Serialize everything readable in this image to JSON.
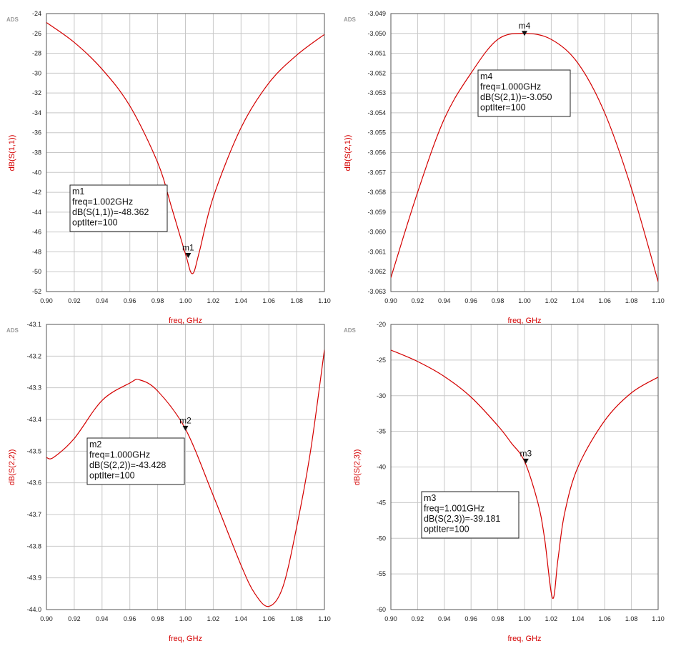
{
  "chart_data": [
    {
      "type": "line",
      "watermark": "ADS",
      "xlabel": "freq, GHz",
      "ylabel": "dB(S(1,1))",
      "xlim": [
        0.9,
        1.1
      ],
      "ylim": [
        -52,
        -24
      ],
      "xticks": [
        "0.90",
        "0.92",
        "0.94",
        "0.96",
        "0.98",
        "1.00",
        "1.02",
        "1.04",
        "1.06",
        "1.08",
        "1.10"
      ],
      "yticks": [
        "-24",
        "-26",
        "-28",
        "-30",
        "-32",
        "-34",
        "-36",
        "-38",
        "-40",
        "-42",
        "-44",
        "-46",
        "-48",
        "-50",
        "-52"
      ],
      "grid": true,
      "line_color": "#d40000",
      "series": [
        {
          "x": [
            0.9,
            0.92,
            0.94,
            0.96,
            0.98,
            0.99,
            1.0,
            1.005,
            1.01,
            1.02,
            1.04,
            1.06,
            1.08,
            1.1
          ],
          "y": [
            -24.9,
            -26.9,
            -29.6,
            -33.3,
            -39.0,
            -43.5,
            -48.2,
            -50.2,
            -48.0,
            -42.5,
            -35.5,
            -31.0,
            -28.2,
            -26.1
          ]
        }
      ],
      "marker": {
        "name": "m1",
        "x": 1.002,
        "y": -48.362,
        "lines": [
          "m1",
          "freq=1.002GHz",
          "dB(S(1,1))=-48.362",
          "optIter=100"
        ]
      }
    },
    {
      "type": "line",
      "watermark": "ADS",
      "xlabel": "freq, GHz",
      "ylabel": "dB(S(2,1))",
      "xlim": [
        0.9,
        1.1
      ],
      "ylim": [
        -3.063,
        -3.049
      ],
      "xticks": [
        "0.90",
        "0.92",
        "0.94",
        "0.96",
        "0.98",
        "1.00",
        "1.02",
        "1.04",
        "1.06",
        "1.08",
        "1.10"
      ],
      "yticks": [
        "-3.049",
        "-3.050",
        "-3.051",
        "-3.052",
        "-3.053",
        "-3.054",
        "-3.055",
        "-3.056",
        "-3.057",
        "-3.058",
        "-3.059",
        "-3.060",
        "-3.061",
        "-3.062",
        "-3.063"
      ],
      "grid": true,
      "line_color": "#d40000",
      "series": [
        {
          "x": [
            0.9,
            0.92,
            0.94,
            0.96,
            0.98,
            1.0,
            1.02,
            1.04,
            1.06,
            1.08,
            1.1
          ],
          "y": [
            -3.0623,
            -3.058,
            -3.0543,
            -3.052,
            -3.0503,
            -3.05,
            -3.0503,
            -3.0515,
            -3.054,
            -3.0578,
            -3.0625
          ]
        }
      ],
      "marker": {
        "name": "m4",
        "x": 1.0,
        "y": -3.05,
        "lines": [
          "m4",
          "freq=1.000GHz",
          "dB(S(2,1))=-3.050",
          "optIter=100"
        ]
      }
    },
    {
      "type": "line",
      "watermark": "ADS",
      "xlabel": "freq, GHz",
      "ylabel": "dB(S(2,2))",
      "xlim": [
        0.9,
        1.1
      ],
      "ylim": [
        -44.0,
        -43.1
      ],
      "xticks": [
        "0.90",
        "0.92",
        "0.94",
        "0.96",
        "0.98",
        "1.00",
        "1.02",
        "1.04",
        "1.06",
        "1.08",
        "1.10"
      ],
      "yticks": [
        "-43.1",
        "-43.2",
        "-43.3",
        "-43.4",
        "-43.5",
        "-43.6",
        "-43.7",
        "-43.8",
        "-43.9",
        "-44.0"
      ],
      "grid": true,
      "line_color": "#d40000",
      "series": [
        {
          "x": [
            0.9,
            0.905,
            0.92,
            0.94,
            0.96,
            0.967,
            0.98,
            1.0,
            1.02,
            1.04,
            1.05,
            1.06,
            1.07,
            1.08,
            1.09,
            1.1
          ],
          "y": [
            -43.52,
            -43.52,
            -43.46,
            -43.34,
            -43.285,
            -43.275,
            -43.31,
            -43.43,
            -43.64,
            -43.86,
            -43.95,
            -43.99,
            -43.93,
            -43.74,
            -43.5,
            -43.18
          ]
        }
      ],
      "marker": {
        "name": "m2",
        "x": 1.0,
        "y": -43.428,
        "lines": [
          "m2",
          "freq=1.000GHz",
          "dB(S(2,2))=-43.428",
          "optIter=100"
        ]
      }
    },
    {
      "type": "line",
      "watermark": "ADS",
      "xlabel": "freq, GHz",
      "ylabel": "dB(S(2,3))",
      "xlim": [
        0.9,
        1.1
      ],
      "ylim": [
        -60,
        -20
      ],
      "xticks": [
        "0.90",
        "0.92",
        "0.94",
        "0.96",
        "0.98",
        "1.00",
        "1.02",
        "1.04",
        "1.06",
        "1.08",
        "1.10"
      ],
      "yticks": [
        "-20",
        "-25",
        "-30",
        "-35",
        "-40",
        "-45",
        "-50",
        "-55",
        "-60"
      ],
      "grid": true,
      "line_color": "#d40000",
      "series": [
        {
          "x": [
            0.9,
            0.92,
            0.94,
            0.96,
            0.98,
            0.99,
            1.0,
            1.01,
            1.015,
            1.021,
            1.025,
            1.03,
            1.04,
            1.06,
            1.08,
            1.1
          ],
          "y": [
            -23.6,
            -25.2,
            -27.3,
            -30.2,
            -34.2,
            -36.6,
            -39.2,
            -45.0,
            -50.0,
            -58.4,
            -53.0,
            -46.5,
            -40.0,
            -33.5,
            -29.6,
            -27.4
          ]
        }
      ],
      "marker": {
        "name": "m3",
        "x": 1.001,
        "y": -39.181,
        "lines": [
          "m3",
          "freq=1.001GHz",
          "dB(S(2,3))=-39.181",
          "optIter=100"
        ]
      }
    }
  ]
}
